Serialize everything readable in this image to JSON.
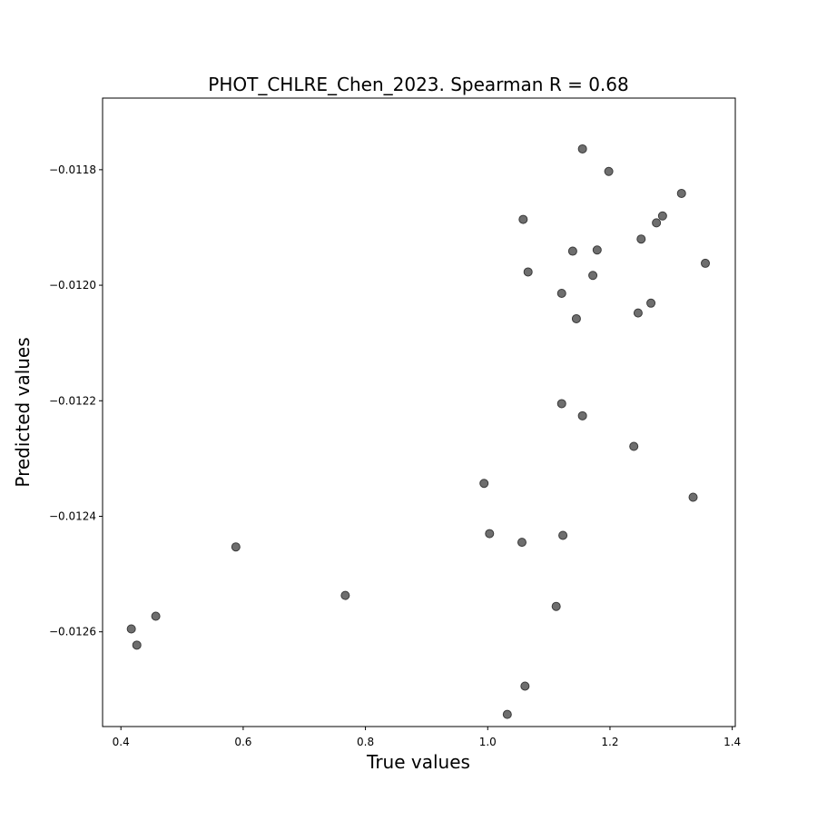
{
  "chart_data": {
    "type": "scatter",
    "title": "PHOT_CHLRE_Chen_2023. Spearman R = 0.68",
    "xlabel": "True values",
    "ylabel": "Predicted values",
    "xlim": [
      0.37,
      1.405
    ],
    "ylim": [
      -0.012764,
      -0.011676
    ],
    "xticks": [
      0.4,
      0.6,
      0.8,
      1.0,
      1.2,
      1.4
    ],
    "xtick_labels": [
      "0.4",
      "0.6",
      "0.8",
      "1.0",
      "1.2",
      "1.4"
    ],
    "yticks": [
      -0.0118,
      -0.012,
      -0.0122,
      -0.0124,
      -0.0126
    ],
    "ytick_labels": [
      "−0.0118",
      "−0.0120",
      "−0.0122",
      "−0.0124",
      "−0.0126"
    ],
    "grid": false,
    "marker_color": "#6e6e6e",
    "marker_edge_color": "#3a3a3a",
    "points": [
      {
        "x": 1.155,
        "y": -0.011764
      },
      {
        "x": 1.198,
        "y": -0.011803
      },
      {
        "x": 1.317,
        "y": -0.011841
      },
      {
        "x": 1.286,
        "y": -0.01188
      },
      {
        "x": 1.276,
        "y": -0.011892
      },
      {
        "x": 1.058,
        "y": -0.011886
      },
      {
        "x": 1.251,
        "y": -0.01192
      },
      {
        "x": 1.139,
        "y": -0.011941
      },
      {
        "x": 1.179,
        "y": -0.011939
      },
      {
        "x": 1.356,
        "y": -0.011962
      },
      {
        "x": 1.066,
        "y": -0.011977
      },
      {
        "x": 1.172,
        "y": -0.011983
      },
      {
        "x": 1.121,
        "y": -0.012014
      },
      {
        "x": 1.267,
        "y": -0.012031
      },
      {
        "x": 1.246,
        "y": -0.012048
      },
      {
        "x": 1.145,
        "y": -0.012058
      },
      {
        "x": 1.121,
        "y": -0.012205
      },
      {
        "x": 1.155,
        "y": -0.012226
      },
      {
        "x": 1.239,
        "y": -0.012279
      },
      {
        "x": 0.994,
        "y": -0.012343
      },
      {
        "x": 1.336,
        "y": -0.012367
      },
      {
        "x": 1.003,
        "y": -0.01243
      },
      {
        "x": 1.123,
        "y": -0.012433
      },
      {
        "x": 1.056,
        "y": -0.012445
      },
      {
        "x": 0.588,
        "y": -0.012453
      },
      {
        "x": 0.767,
        "y": -0.012537
      },
      {
        "x": 1.112,
        "y": -0.012556
      },
      {
        "x": 0.457,
        "y": -0.012573
      },
      {
        "x": 0.417,
        "y": -0.012595
      },
      {
        "x": 0.426,
        "y": -0.012623
      },
      {
        "x": 1.061,
        "y": -0.012694
      },
      {
        "x": 1.032,
        "y": -0.012743
      }
    ]
  }
}
